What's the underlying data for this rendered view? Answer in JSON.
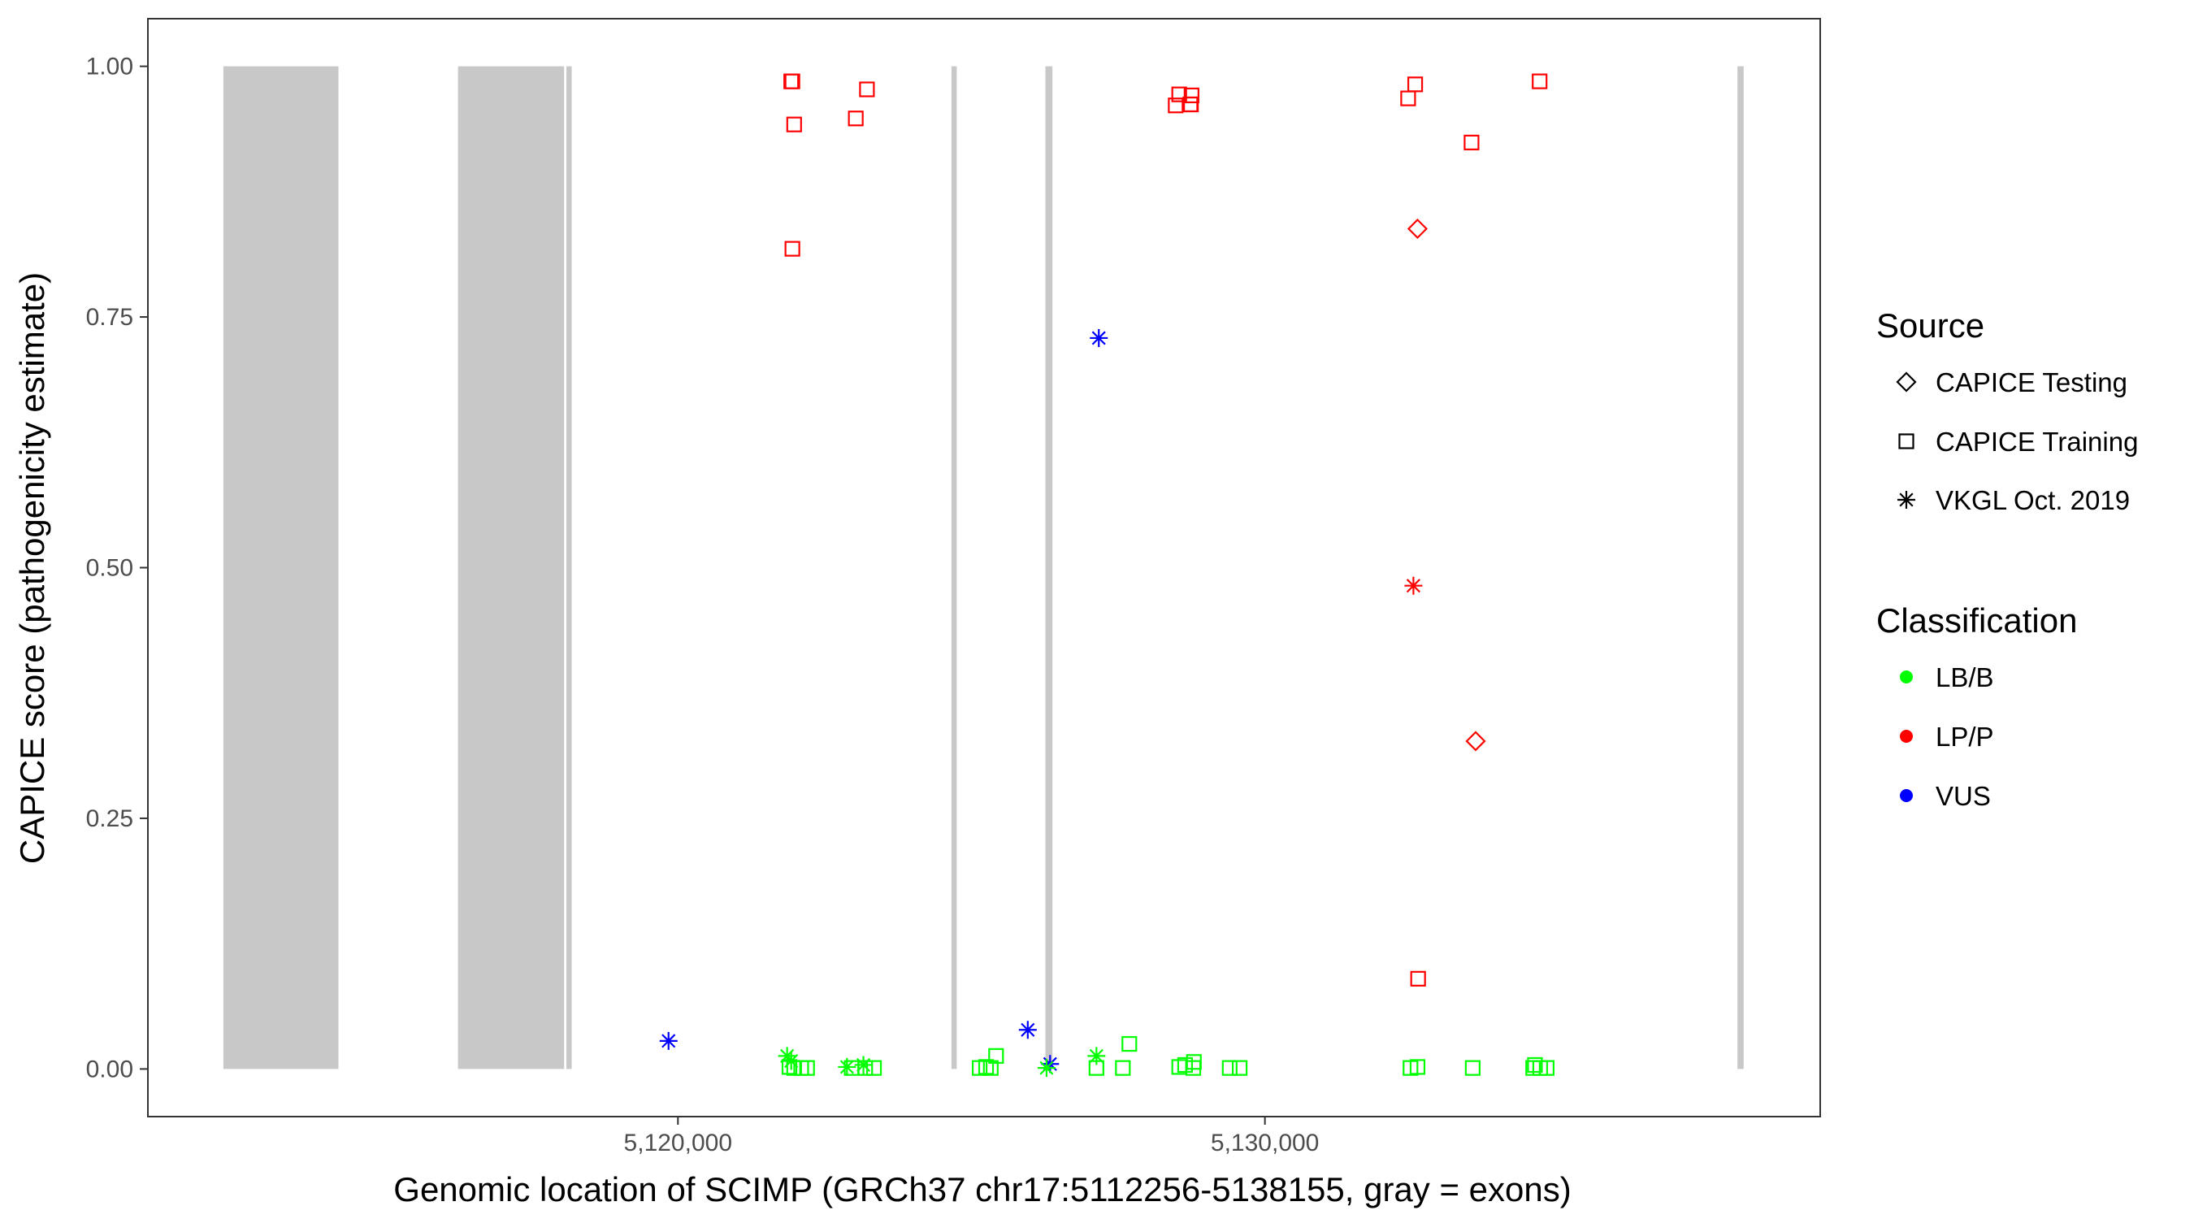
{
  "chart_data": {
    "type": "scatter",
    "title": "",
    "xlabel": "Genomic location of SCIMP (GRCh37 chr17:5112256-5138155, gray = exons)",
    "ylabel": "CAPICE score (pathogenicity estimate)",
    "xlim": [
      5110970,
      5139460
    ],
    "ylim": [
      -0.0475,
      1.0475
    ],
    "x_ticks": [
      5120000,
      5130000
    ],
    "x_tick_labels": [
      "5,120,000",
      "5,130,000"
    ],
    "y_ticks": [
      0,
      0.25,
      0.5,
      0.75,
      1.0
    ],
    "y_tick_labels": [
      "0.00",
      "0.25",
      "0.50",
      "0.75",
      "1.00"
    ],
    "grid": false,
    "legend_position": "right",
    "exon_color": "#c8c8c8",
    "exons": [
      {
        "start": 5112256,
        "end": 5114216
      },
      {
        "start": 5116253,
        "end": 5118061
      },
      {
        "start": 5118100,
        "end": 5118190
      },
      {
        "start": 5124660,
        "end": 5124750
      },
      {
        "start": 5126260,
        "end": 5126380
      },
      {
        "start": 5138050,
        "end": 5138155
      }
    ],
    "legends": {
      "source": {
        "title": "Source",
        "items": [
          {
            "label": "CAPICE Testing",
            "shape": "diamond"
          },
          {
            "label": "CAPICE Training",
            "shape": "square"
          },
          {
            "label": "VKGL Oct. 2019",
            "shape": "asterisk"
          }
        ]
      },
      "classification": {
        "title": "Classification",
        "items": [
          {
            "label": "LB/B",
            "color": "#00ff00"
          },
          {
            "label": "LP/P",
            "color": "#ff0000"
          },
          {
            "label": "VUS",
            "color": "#0000ff"
          }
        ]
      }
    },
    "series": [
      {
        "name": "CAPICE Training",
        "shape": "square",
        "color": "#ff0000",
        "classification": "LP/P",
        "x": [
          5121930,
          5121980,
          5121950,
          5123030,
          5123220,
          5121950,
          5128480,
          5128540,
          5128730,
          5128750,
          5128740,
          5132440,
          5132560,
          5133520,
          5134680,
          5132610
        ],
        "y": [
          0.985,
          0.942,
          0.818,
          0.948,
          0.977,
          0.985,
          0.961,
          0.972,
          0.962,
          0.971,
          0.962,
          0.968,
          0.982,
          0.924,
          0.985,
          0.09
        ]
      },
      {
        "name": "CAPICE Testing",
        "shape": "diamond",
        "color": "#ff0000",
        "classification": "LP/P",
        "x": [
          5132600,
          5133590
        ],
        "y": [
          0.838,
          0.327
        ]
      },
      {
        "name": "VKGL Oct. 2019",
        "shape": "asterisk",
        "color": "#ff0000",
        "classification": "LP/P",
        "x": [
          5132530
        ],
        "y": [
          0.482
        ]
      },
      {
        "name": "VKGL Oct. 2019",
        "shape": "asterisk",
        "color": "#0000ff",
        "classification": "VUS",
        "x": [
          5119840,
          5125960,
          5127170,
          5126340
        ],
        "y": [
          0.028,
          0.039,
          0.729,
          0.005
        ]
      },
      {
        "name": "VKGL Oct. 2019",
        "shape": "asterisk",
        "color": "#00ff00",
        "classification": "LB/B",
        "x": [
          5121860,
          5121930,
          5122880,
          5123160,
          5126280,
          5127130
        ],
        "y": [
          0.013,
          0.008,
          0.002,
          0.004,
          0.001,
          0.013
        ]
      },
      {
        "name": "CAPICE Training",
        "shape": "square",
        "color": "#00ff00",
        "classification": "LB/B",
        "x": [
          5121900,
          5121980,
          5122100,
          5122200,
          5122960,
          5123190,
          5123340,
          5125140,
          5125250,
          5125330,
          5125420,
          5127130,
          5127580,
          5127690,
          5128540,
          5128640,
          5128780,
          5128790,
          5129400,
          5129570,
          5132480,
          5132600,
          5133540,
          5134570,
          5134600,
          5134690,
          5134800
        ],
        "y": [
          0.002,
          0.001,
          0.001,
          0.001,
          0.001,
          0.001,
          0.001,
          0.001,
          0.002,
          0.001,
          0.013,
          0.001,
          0.001,
          0.025,
          0.002,
          0.004,
          0.001,
          0.007,
          0.001,
          0.001,
          0.001,
          0.002,
          0.001,
          0.001,
          0.004,
          0.001,
          0.001
        ]
      }
    ]
  }
}
